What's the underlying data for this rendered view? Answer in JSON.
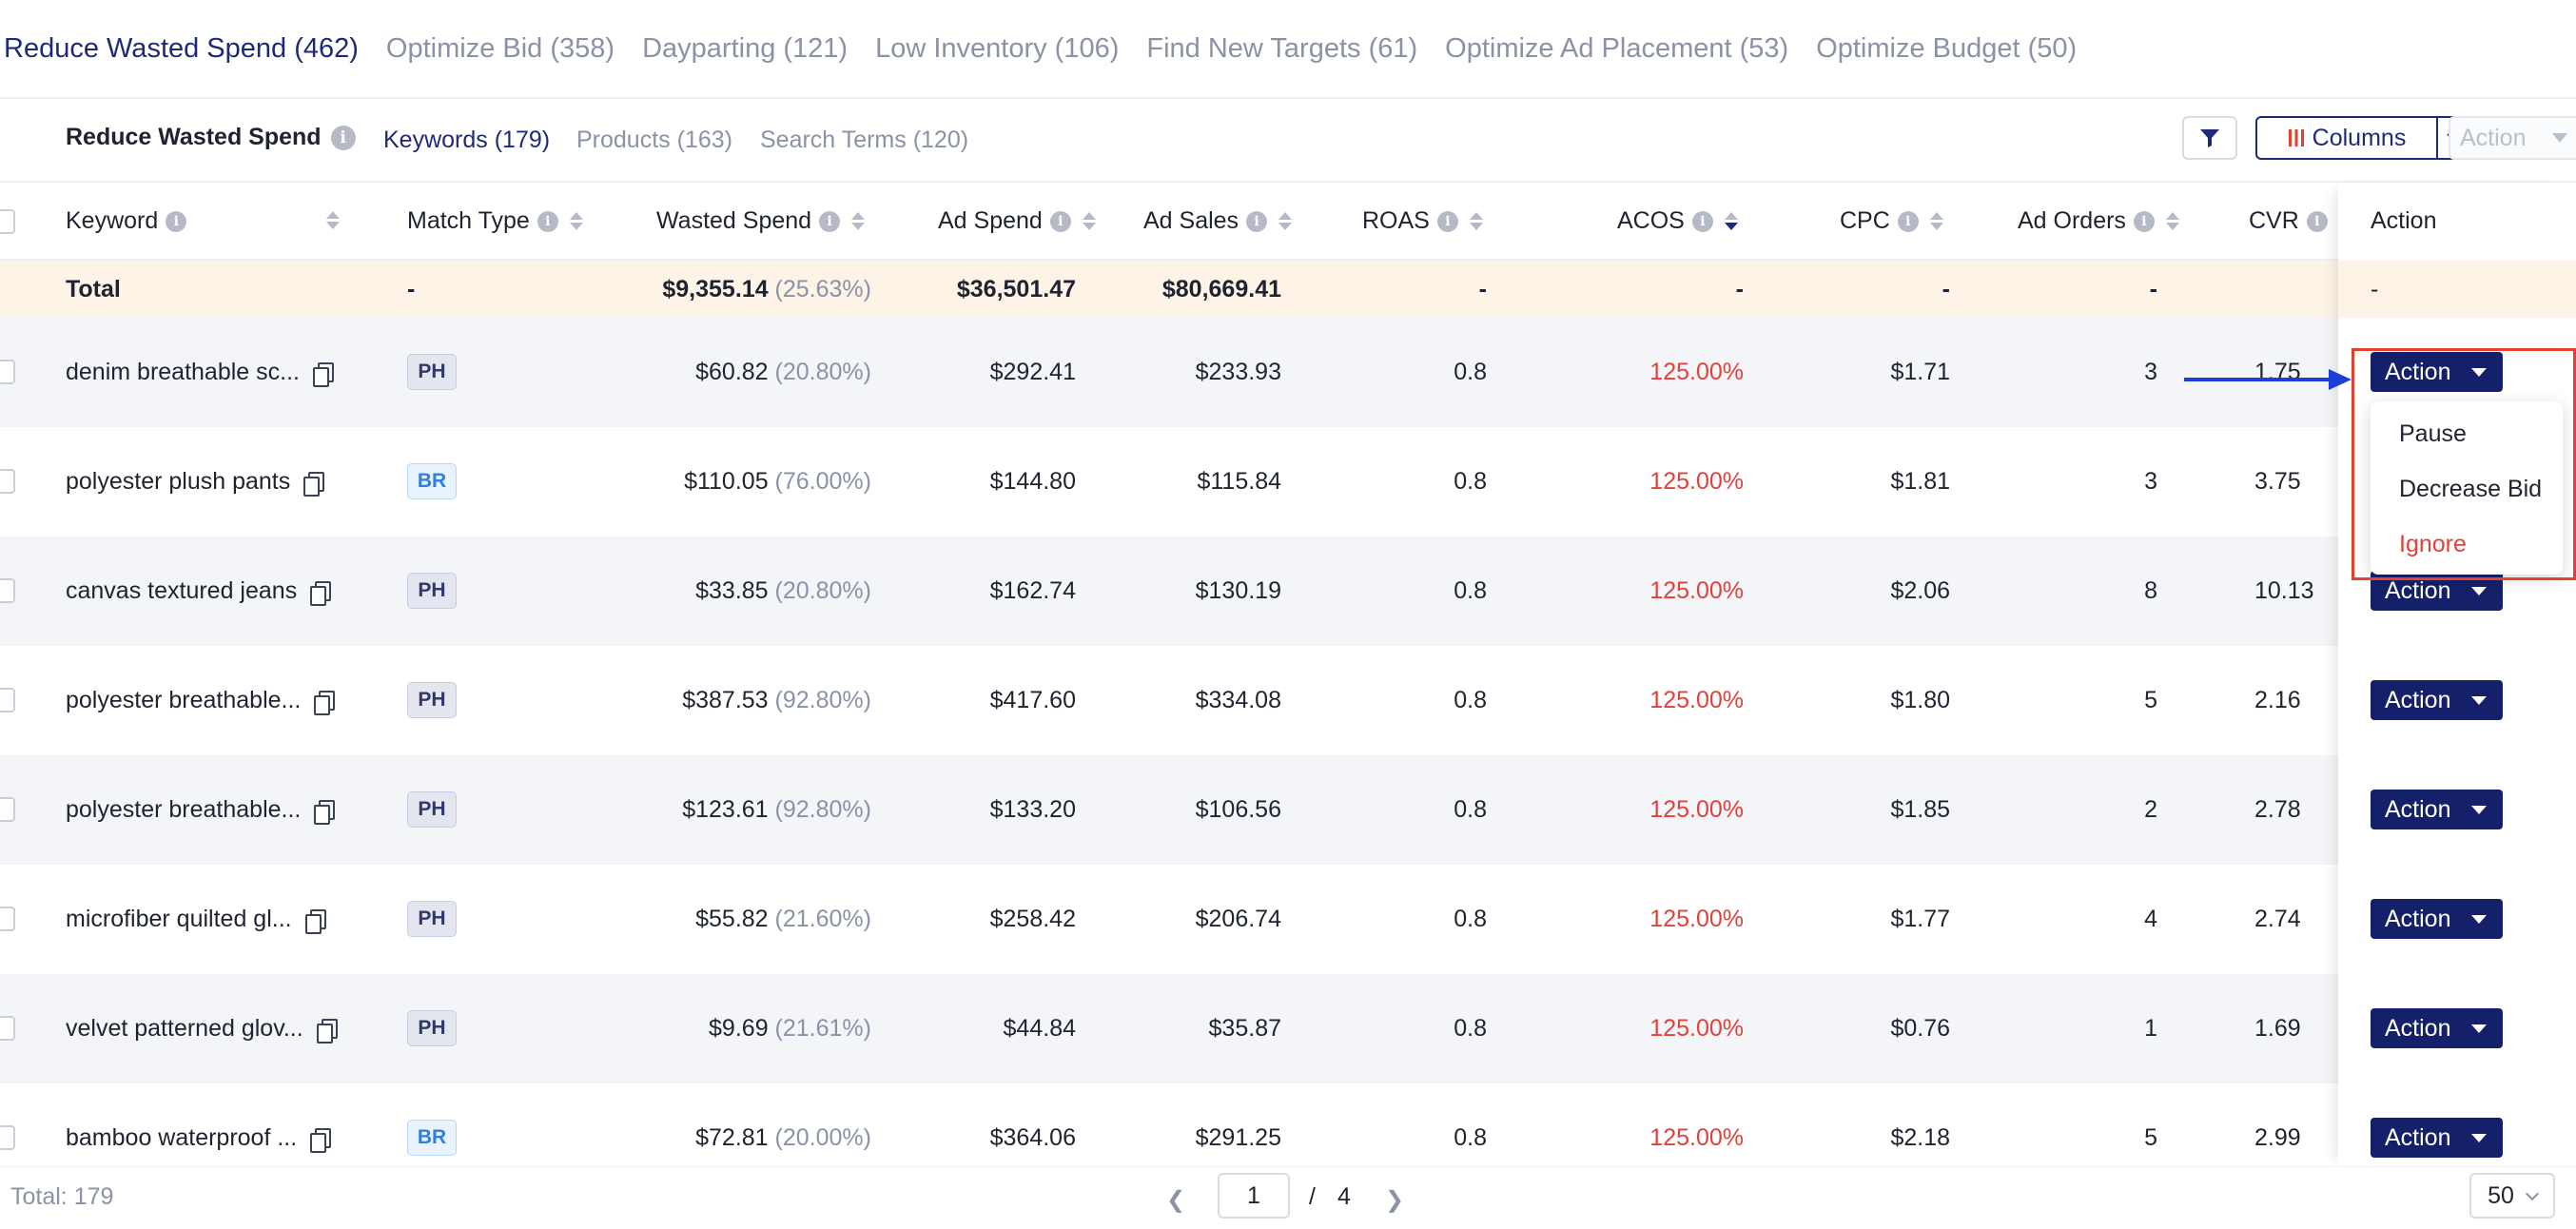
{
  "top_tabs": [
    {
      "label": "Reduce Wasted Spend (462)",
      "active": true
    },
    {
      "label": "Optimize Bid (358)"
    },
    {
      "label": "Dayparting (121)"
    },
    {
      "label": "Low Inventory (106)"
    },
    {
      "label": "Find New Targets (61)"
    },
    {
      "label": "Optimize Ad Placement (53)"
    },
    {
      "label": "Optimize Budget (50)"
    }
  ],
  "subbar": {
    "title": "Reduce Wasted Spend",
    "tabs": [
      "Keywords (179)",
      "Products (163)",
      "Search Terms (120)"
    ],
    "columns_label": "Columns",
    "action_label": "Action"
  },
  "columns": {
    "keyword": "Keyword",
    "match_type": "Match Type",
    "wasted_spend": "Wasted Spend",
    "ad_spend": "Ad Spend",
    "ad_sales": "Ad Sales",
    "roas": "ROAS",
    "acos": "ACOS",
    "cpc": "CPC",
    "ad_orders": "Ad Orders",
    "cvr": "CVR",
    "action": "Action"
  },
  "total_row": {
    "label": "Total",
    "match_type": "-",
    "wasted_spend": "$9,355.14",
    "wasted_pct": "(25.63%)",
    "ad_spend": "$36,501.47",
    "ad_sales": "$80,669.41",
    "roas": "-",
    "acos": "-",
    "cpc": "-",
    "ad_orders": "-",
    "action": "-"
  },
  "rows": [
    {
      "keyword": "denim breathable sc...",
      "match": "PH",
      "wasted": "$60.82",
      "wasted_pct": "(20.80%)",
      "ad_spend": "$292.41",
      "ad_sales": "$233.93",
      "roas": "0.8",
      "acos": "125.00%",
      "cpc": "$1.71",
      "orders": "3",
      "cvr": "1.75",
      "action": "Action"
    },
    {
      "keyword": "polyester plush pants",
      "match": "BR",
      "wasted": "$110.05",
      "wasted_pct": "(76.00%)",
      "ad_spend": "$144.80",
      "ad_sales": "$115.84",
      "roas": "0.8",
      "acos": "125.00%",
      "cpc": "$1.81",
      "orders": "3",
      "cvr": "3.75",
      "action": "Action"
    },
    {
      "keyword": "canvas textured jeans",
      "match": "PH",
      "wasted": "$33.85",
      "wasted_pct": "(20.80%)",
      "ad_spend": "$162.74",
      "ad_sales": "$130.19",
      "roas": "0.8",
      "acos": "125.00%",
      "cpc": "$2.06",
      "orders": "8",
      "cvr": "10.13",
      "action": "Action"
    },
    {
      "keyword": "polyester breathable...",
      "match": "PH",
      "wasted": "$387.53",
      "wasted_pct": "(92.80%)",
      "ad_spend": "$417.60",
      "ad_sales": "$334.08",
      "roas": "0.8",
      "acos": "125.00%",
      "cpc": "$1.80",
      "orders": "5",
      "cvr": "2.16",
      "action": "Action"
    },
    {
      "keyword": "polyester breathable...",
      "match": "PH",
      "wasted": "$123.61",
      "wasted_pct": "(92.80%)",
      "ad_spend": "$133.20",
      "ad_sales": "$106.56",
      "roas": "0.8",
      "acos": "125.00%",
      "cpc": "$1.85",
      "orders": "2",
      "cvr": "2.78",
      "action": "Action"
    },
    {
      "keyword": "microfiber quilted gl...",
      "match": "PH",
      "wasted": "$55.82",
      "wasted_pct": "(21.60%)",
      "ad_spend": "$258.42",
      "ad_sales": "$206.74",
      "roas": "0.8",
      "acos": "125.00%",
      "cpc": "$1.77",
      "orders": "4",
      "cvr": "2.74",
      "action": "Action"
    },
    {
      "keyword": "velvet patterned glov...",
      "match": "PH",
      "wasted": "$9.69",
      "wasted_pct": "(21.61%)",
      "ad_spend": "$44.84",
      "ad_sales": "$35.87",
      "roas": "0.8",
      "acos": "125.00%",
      "cpc": "$0.76",
      "orders": "1",
      "cvr": "1.69",
      "action": "Action"
    },
    {
      "keyword": "bamboo waterproof ...",
      "match": "BR",
      "wasted": "$72.81",
      "wasted_pct": "(20.00%)",
      "ad_spend": "$364.06",
      "ad_sales": "$291.25",
      "roas": "0.8",
      "acos": "125.00%",
      "cpc": "$2.18",
      "orders": "5",
      "cvr": "2.99",
      "action": "Action"
    }
  ],
  "dropdown": {
    "items": [
      "Pause",
      "Decrease Bid",
      "Ignore"
    ]
  },
  "footer": {
    "total": "Total: 179",
    "page": "1",
    "separator": "/",
    "page_count": "4",
    "page_size": "50"
  },
  "colors": {
    "accent": "#15206b",
    "danger": "#e0413b",
    "total_row_bg": "#fdf3e7",
    "highlight": "#e4412f",
    "arrow": "#1b3fd6"
  },
  "icons": [
    "info-icon",
    "sort-icon",
    "copy-icon",
    "filter-icon",
    "columns-icon",
    "chevron-down-icon",
    "caret-down-icon",
    "chevron-left-icon",
    "chevron-right-icon",
    "arrow-right-icon"
  ]
}
